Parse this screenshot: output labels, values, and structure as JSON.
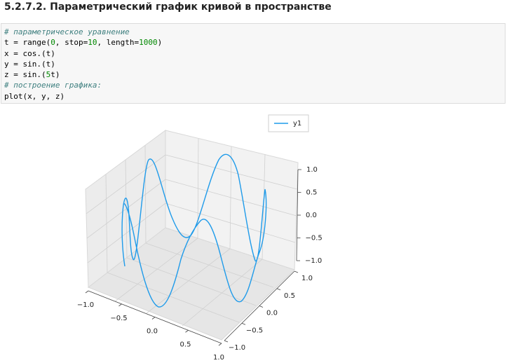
{
  "heading": "5.2.7.2. Параметрический график кривой в пространстве",
  "code": {
    "lines": [
      [
        "# параметрическое уравнение"
      ],
      [
        "t = range(",
        "0",
        ", stop=",
        "10",
        ", length=",
        "1000",
        ")"
      ],
      [
        "x = cos.(t)"
      ],
      [
        "y = sin.(t)"
      ],
      [
        "z = sin.(",
        "5",
        "t)"
      ],
      [
        "# построение графика:"
      ],
      [
        "plot(x, y, z)"
      ]
    ]
  },
  "figure": {
    "legend": [
      "y1"
    ],
    "color": "#1f9bea",
    "xlim": [
      -1.0,
      1.0
    ],
    "ylim": [
      -1.0,
      1.0
    ],
    "zlim": [
      -1.0,
      1.0
    ],
    "xticks": [
      {
        "value": -1.0,
        "label": "−1.0"
      },
      {
        "value": -0.5,
        "label": "−0.5"
      },
      {
        "value": 0.0,
        "label": "0.0"
      },
      {
        "value": 0.5,
        "label": "0.5"
      },
      {
        "value": 1.0,
        "label": "1.0"
      }
    ],
    "yticks": [
      {
        "value": -1.0,
        "label": "−1.0"
      },
      {
        "value": -0.5,
        "label": "−0.5"
      },
      {
        "value": 0.0,
        "label": "0.0"
      },
      {
        "value": 0.5,
        "label": "0.5"
      },
      {
        "value": 1.0,
        "label": "1.0"
      }
    ],
    "zticks": [
      {
        "value": -1.0,
        "label": "−1.0"
      },
      {
        "value": -0.5,
        "label": "−0.5"
      },
      {
        "value": 0.0,
        "label": "0.0"
      },
      {
        "value": 0.5,
        "label": "0.5"
      },
      {
        "value": 1.0,
        "label": "1.0"
      }
    ]
  }
}
